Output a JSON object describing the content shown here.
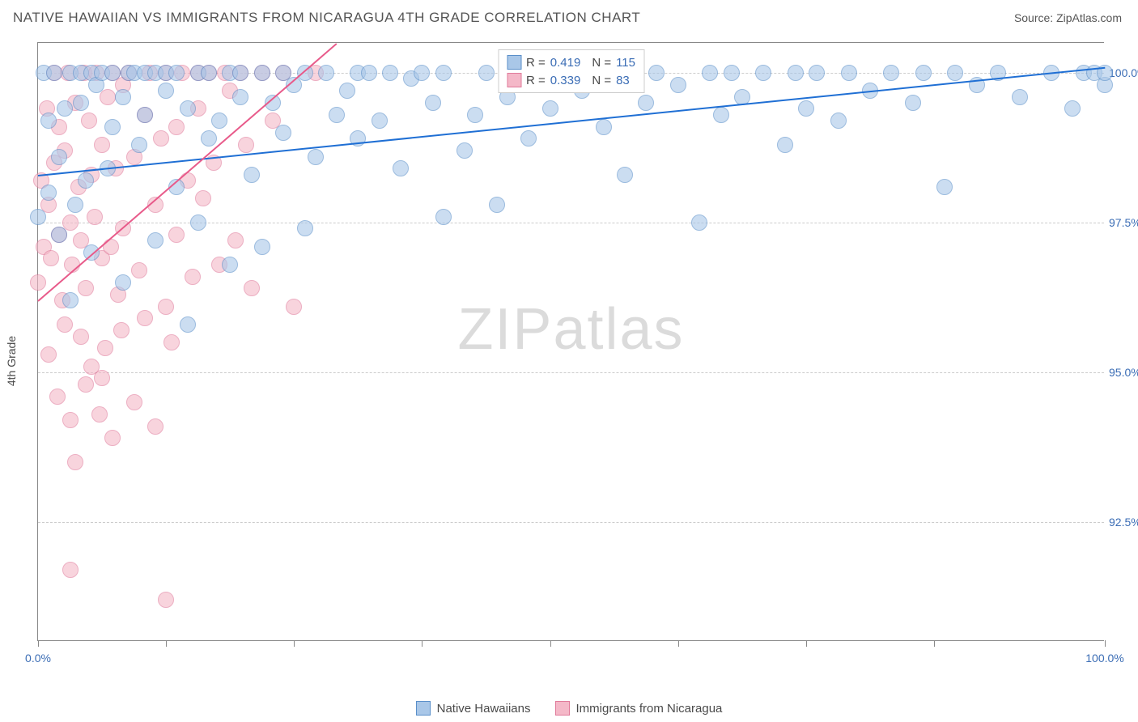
{
  "header": {
    "title": "NATIVE HAWAIIAN VS IMMIGRANTS FROM NICARAGUA 4TH GRADE CORRELATION CHART",
    "source": "Source: ZipAtlas.com"
  },
  "chart": {
    "type": "scatter",
    "ylabel": "4th Grade",
    "xlim": [
      0,
      100
    ],
    "ylim": [
      90.5,
      100.5
    ],
    "xticks": [
      0,
      12,
      24,
      36,
      48,
      60,
      72,
      84,
      100
    ],
    "xtick_labels": {
      "0": "0.0%",
      "100": "100.0%"
    },
    "yticks": [
      92.5,
      95.0,
      97.5,
      100.0
    ],
    "ytick_labels": [
      "92.5%",
      "95.0%",
      "97.5%",
      "100.0%"
    ],
    "grid_color": "#cccccc",
    "background_color": "#ffffff",
    "axis_color": "#888888",
    "marker_radius": 10,
    "series": [
      {
        "name": "Native Hawaiians",
        "fill": "#a9c7e8",
        "stroke": "#5a8fc9",
        "trend_color": "#1f6fd4",
        "trend": {
          "x1": 0,
          "y1": 98.3,
          "x2": 100,
          "y2": 100.1
        },
        "r": "0.419",
        "n": "115",
        "points": [
          [
            0,
            97.6
          ],
          [
            0.5,
            100
          ],
          [
            1,
            98
          ],
          [
            1,
            99.2
          ],
          [
            1.5,
            100
          ],
          [
            2,
            97.3
          ],
          [
            2,
            98.6
          ],
          [
            2.5,
            99.4
          ],
          [
            3,
            100
          ],
          [
            3,
            96.2
          ],
          [
            3.5,
            97.8
          ],
          [
            4,
            99.5
          ],
          [
            4,
            100
          ],
          [
            4.5,
            98.2
          ],
          [
            5,
            100
          ],
          [
            5,
            97
          ],
          [
            5.5,
            99.8
          ],
          [
            6,
            100
          ],
          [
            6.5,
            98.4
          ],
          [
            7,
            99.1
          ],
          [
            7,
            100
          ],
          [
            8,
            96.5
          ],
          [
            8,
            99.6
          ],
          [
            8.5,
            100
          ],
          [
            9,
            100
          ],
          [
            9.5,
            98.8
          ],
          [
            10,
            99.3
          ],
          [
            10,
            100
          ],
          [
            11,
            97.2
          ],
          [
            11,
            100
          ],
          [
            12,
            99.7
          ],
          [
            12,
            100
          ],
          [
            13,
            98.1
          ],
          [
            13,
            100
          ],
          [
            14,
            99.4
          ],
          [
            14,
            95.8
          ],
          [
            15,
            100
          ],
          [
            15,
            97.5
          ],
          [
            16,
            98.9
          ],
          [
            16,
            100
          ],
          [
            17,
            99.2
          ],
          [
            18,
            100
          ],
          [
            18,
            96.8
          ],
          [
            19,
            99.6
          ],
          [
            19,
            100
          ],
          [
            20,
            98.3
          ],
          [
            21,
            100
          ],
          [
            21,
            97.1
          ],
          [
            22,
            99.5
          ],
          [
            23,
            100
          ],
          [
            23,
            99
          ],
          [
            24,
            99.8
          ],
          [
            25,
            100
          ],
          [
            25,
            97.4
          ],
          [
            26,
            98.6
          ],
          [
            27,
            100
          ],
          [
            28,
            99.3
          ],
          [
            29,
            99.7
          ],
          [
            30,
            100
          ],
          [
            30,
            98.9
          ],
          [
            31,
            100
          ],
          [
            32,
            99.2
          ],
          [
            33,
            100
          ],
          [
            34,
            98.4
          ],
          [
            35,
            99.9
          ],
          [
            36,
            100
          ],
          [
            37,
            99.5
          ],
          [
            38,
            97.6
          ],
          [
            38,
            100
          ],
          [
            40,
            98.7
          ],
          [
            41,
            99.3
          ],
          [
            42,
            100
          ],
          [
            43,
            97.8
          ],
          [
            44,
            99.6
          ],
          [
            45,
            100
          ],
          [
            46,
            98.9
          ],
          [
            47,
            100
          ],
          [
            48,
            99.4
          ],
          [
            50,
            100
          ],
          [
            51,
            99.7
          ],
          [
            52,
            100
          ],
          [
            53,
            99.1
          ],
          [
            54,
            100
          ],
          [
            55,
            98.3
          ],
          [
            56,
            100
          ],
          [
            57,
            99.5
          ],
          [
            58,
            100
          ],
          [
            60,
            99.8
          ],
          [
            62,
            97.5
          ],
          [
            63,
            100
          ],
          [
            64,
            99.3
          ],
          [
            65,
            100
          ],
          [
            66,
            99.6
          ],
          [
            68,
            100
          ],
          [
            70,
            98.8
          ],
          [
            71,
            100
          ],
          [
            72,
            99.4
          ],
          [
            73,
            100
          ],
          [
            75,
            99.2
          ],
          [
            76,
            100
          ],
          [
            78,
            99.7
          ],
          [
            80,
            100
          ],
          [
            82,
            99.5
          ],
          [
            83,
            100
          ],
          [
            85,
            98.1
          ],
          [
            86,
            100
          ],
          [
            88,
            99.8
          ],
          [
            90,
            100
          ],
          [
            92,
            99.6
          ],
          [
            95,
            100
          ],
          [
            97,
            99.4
          ],
          [
            98,
            100
          ],
          [
            99,
            100
          ],
          [
            100,
            99.8
          ],
          [
            100,
            100
          ]
        ]
      },
      {
        "name": "Immigrants from Nicaragua",
        "fill": "#f4b8c8",
        "stroke": "#e07a9a",
        "trend_color": "#e85a8a",
        "trend": {
          "x1": 0,
          "y1": 96.2,
          "x2": 28,
          "y2": 100.5
        },
        "r": "0.339",
        "n": "83",
        "points": [
          [
            0,
            96.5
          ],
          [
            0.3,
            98.2
          ],
          [
            0.5,
            97.1
          ],
          [
            0.8,
            99.4
          ],
          [
            1,
            95.3
          ],
          [
            1,
            97.8
          ],
          [
            1.2,
            96.9
          ],
          [
            1.5,
            100
          ],
          [
            1.5,
            98.5
          ],
          [
            1.8,
            94.6
          ],
          [
            2,
            97.3
          ],
          [
            2,
            99.1
          ],
          [
            2.3,
            96.2
          ],
          [
            2.5,
            95.8
          ],
          [
            2.5,
            98.7
          ],
          [
            2.8,
            100
          ],
          [
            3,
            97.5
          ],
          [
            3,
            94.2
          ],
          [
            3.2,
            96.8
          ],
          [
            3.5,
            99.5
          ],
          [
            3.5,
            93.5
          ],
          [
            3.8,
            98.1
          ],
          [
            4,
            95.6
          ],
          [
            4,
            97.2
          ],
          [
            4.3,
            100
          ],
          [
            4.5,
            96.4
          ],
          [
            4.5,
            94.8
          ],
          [
            4.8,
            99.2
          ],
          [
            5,
            98.3
          ],
          [
            5,
            95.1
          ],
          [
            5.3,
            97.6
          ],
          [
            5.5,
            100
          ],
          [
            5.8,
            94.3
          ],
          [
            6,
            96.9
          ],
          [
            6,
            98.8
          ],
          [
            6.3,
            95.4
          ],
          [
            6.5,
            99.6
          ],
          [
            6.8,
            97.1
          ],
          [
            7,
            100
          ],
          [
            7,
            93.9
          ],
          [
            7.3,
            98.4
          ],
          [
            7.5,
            96.3
          ],
          [
            7.8,
            95.7
          ],
          [
            8,
            99.8
          ],
          [
            8,
            97.4
          ],
          [
            8.5,
            100
          ],
          [
            9,
            94.5
          ],
          [
            9,
            98.6
          ],
          [
            9.5,
            96.7
          ],
          [
            10,
            99.3
          ],
          [
            10,
            95.9
          ],
          [
            10.5,
            100
          ],
          [
            11,
            97.8
          ],
          [
            11,
            94.1
          ],
          [
            11.5,
            98.9
          ],
          [
            12,
            96.1
          ],
          [
            12,
            100
          ],
          [
            12.5,
            95.5
          ],
          [
            13,
            99.1
          ],
          [
            13,
            97.3
          ],
          [
            13.5,
            100
          ],
          [
            14,
            98.2
          ],
          [
            14.5,
            96.6
          ],
          [
            15,
            100
          ],
          [
            15,
            99.4
          ],
          [
            15.5,
            97.9
          ],
          [
            16,
            100
          ],
          [
            16.5,
            98.5
          ],
          [
            17,
            96.8
          ],
          [
            17.5,
            100
          ],
          [
            18,
            99.7
          ],
          [
            18.5,
            97.2
          ],
          [
            19,
            100
          ],
          [
            19.5,
            98.8
          ],
          [
            20,
            96.4
          ],
          [
            21,
            100
          ],
          [
            22,
            99.2
          ],
          [
            23,
            100
          ],
          [
            24,
            96.1
          ],
          [
            26,
            100
          ],
          [
            3,
            91.7
          ],
          [
            12,
            91.2
          ],
          [
            6,
            94.9
          ]
        ]
      }
    ]
  },
  "legend_top": {
    "rows": [
      {
        "swatch_fill": "#a9c7e8",
        "swatch_stroke": "#5a8fc9",
        "r_label": "R =",
        "r_val": "0.419",
        "n_label": "N =",
        "n_val": "115"
      },
      {
        "swatch_fill": "#f4b8c8",
        "swatch_stroke": "#e07a9a",
        "r_label": "R =",
        "r_val": "0.339",
        "n_label": "N =",
        "n_val": " 83"
      }
    ]
  },
  "legend_bottom": {
    "items": [
      {
        "fill": "#a9c7e8",
        "stroke": "#5a8fc9",
        "label": "Native Hawaiians"
      },
      {
        "fill": "#f4b8c8",
        "stroke": "#e07a9a",
        "label": "Immigrants from Nicaragua"
      }
    ]
  },
  "watermark": {
    "part1": "ZIP",
    "part2": "atlas"
  }
}
